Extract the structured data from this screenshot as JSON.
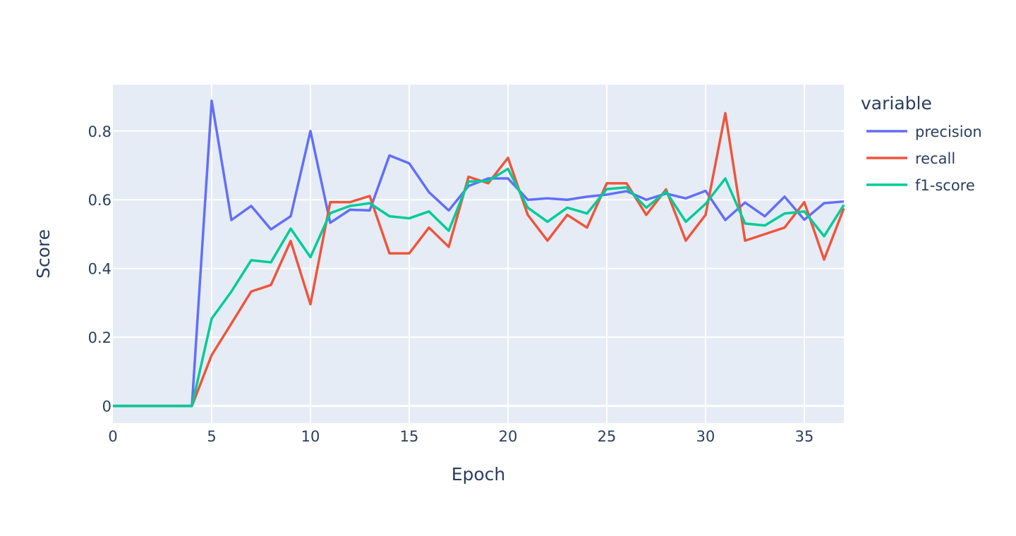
{
  "chart_data": {
    "type": "line",
    "title": "",
    "xlabel": "Epoch",
    "ylabel": "Score",
    "xlim": [
      0,
      37
    ],
    "ylim": [
      -0.05,
      0.935
    ],
    "x_ticks": [
      0,
      5,
      10,
      15,
      20,
      25,
      30,
      35
    ],
    "y_ticks": [
      0,
      0.2,
      0.4,
      0.6,
      0.8
    ],
    "grid": true,
    "background": "#e5ecf6",
    "legend": {
      "title": "variable",
      "placement": "right"
    },
    "x": [
      0,
      1,
      2,
      3,
      4,
      5,
      6,
      7,
      8,
      9,
      10,
      11,
      12,
      13,
      14,
      15,
      16,
      17,
      18,
      19,
      20,
      21,
      22,
      23,
      24,
      25,
      26,
      27,
      28,
      29,
      30,
      31,
      32,
      33,
      34,
      35,
      36,
      37
    ],
    "series": [
      {
        "name": "precision",
        "color": "#636efa",
        "values": [
          0,
          0,
          0,
          0,
          0,
          0.888,
          0.541,
          0.582,
          0.514,
          0.552,
          0.8,
          0.533,
          0.571,
          0.569,
          0.729,
          0.706,
          0.622,
          0.569,
          0.64,
          0.662,
          0.662,
          0.6,
          0.604,
          0.6,
          0.609,
          0.615,
          0.625,
          0.6,
          0.618,
          0.604,
          0.626,
          0.541,
          0.592,
          0.552,
          0.609,
          0.542,
          0.59,
          0.595
        ]
      },
      {
        "name": "recall",
        "color": "#ef553b",
        "values": [
          0,
          0,
          0,
          0,
          0,
          0.148,
          0.24,
          0.333,
          0.352,
          0.48,
          0.296,
          0.593,
          0.593,
          0.611,
          0.444,
          0.444,
          0.519,
          0.463,
          0.667,
          0.648,
          0.722,
          0.556,
          0.481,
          0.556,
          0.519,
          0.648,
          0.648,
          0.556,
          0.63,
          0.481,
          0.556,
          0.852,
          0.481,
          0.5,
          0.519,
          0.593,
          0.426,
          0.575
        ]
      },
      {
        "name": "f1-score",
        "color": "#00cc96",
        "values": [
          0,
          0,
          0,
          0,
          0,
          0.254,
          0.333,
          0.424,
          0.418,
          0.516,
          0.433,
          0.561,
          0.582,
          0.59,
          0.552,
          0.546,
          0.566,
          0.51,
          0.653,
          0.655,
          0.69,
          0.577,
          0.536,
          0.577,
          0.56,
          0.631,
          0.636,
          0.577,
          0.624,
          0.536,
          0.588,
          0.662,
          0.531,
          0.525,
          0.56,
          0.566,
          0.494,
          0.585
        ]
      }
    ]
  }
}
